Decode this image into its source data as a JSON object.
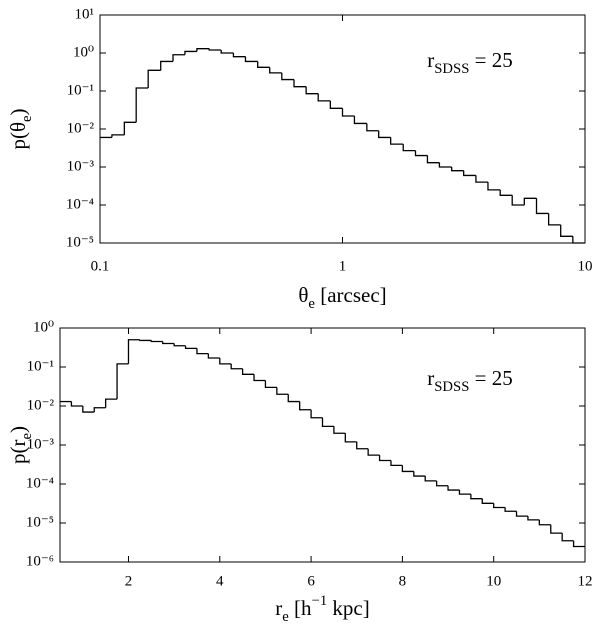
{
  "chart_data": [
    {
      "type": "histogram",
      "xlog": true,
      "ylog": true,
      "color": "#000000",
      "annotation": [
        {
          "text": "r"
        },
        {
          "text": "SDSS",
          "script": "sub"
        },
        {
          "text": " = 25"
        }
      ],
      "xlabel": [
        {
          "text": "θ"
        },
        {
          "text": "e",
          "script": "sub"
        },
        {
          "text": " [arcsec]"
        }
      ],
      "ylabel": [
        {
          "text": "p(θ"
        },
        {
          "text": "e",
          "script": "sub"
        },
        {
          "text": ")"
        }
      ],
      "bins": [
        0.1,
        0.112,
        0.126,
        0.141,
        0.158,
        0.178,
        0.2,
        0.224,
        0.251,
        0.282,
        0.316,
        0.355,
        0.398,
        0.447,
        0.501,
        0.562,
        0.631,
        0.708,
        0.794,
        0.891,
        1,
        1.12,
        1.26,
        1.41,
        1.58,
        1.78,
        2,
        2.24,
        2.51,
        2.82,
        3.16,
        3.55,
        3.98,
        4.47,
        5.01,
        5.62,
        6.31,
        7.08,
        7.94,
        8.91,
        10
      ],
      "values": [
        0.006,
        0.007,
        0.015,
        0.12,
        0.35,
        0.6,
        0.9,
        1.1,
        1.3,
        1.2,
        1.0,
        0.8,
        0.6,
        0.42,
        0.3,
        0.2,
        0.13,
        0.085,
        0.055,
        0.035,
        0.022,
        0.014,
        0.009,
        0.006,
        0.004,
        0.0027,
        0.002,
        0.0013,
        0.001,
        0.0008,
        0.0006,
        0.0004,
        0.00025,
        0.00018,
        0.0001,
        0.00015,
        6e-05,
        3e-05,
        1.5e-05,
        1e-05
      ],
      "xlim": [
        0.1,
        10
      ],
      "xticks": [
        0.1,
        1,
        10
      ],
      "ylim": [
        1e-05,
        10
      ],
      "yticks": [
        {
          "value": 1e-05,
          "label": "10⁻⁵"
        },
        {
          "value": 0.0001,
          "label": "10⁻⁴"
        },
        {
          "value": 0.001,
          "label": "10⁻³"
        },
        {
          "value": 0.01,
          "label": "10⁻²"
        },
        {
          "value": 0.1,
          "label": "10⁻¹"
        },
        {
          "value": 1,
          "label": "10⁰"
        },
        {
          "value": 10,
          "label": "10¹"
        }
      ]
    },
    {
      "type": "histogram",
      "xlog": false,
      "ylog": true,
      "color": "#000000",
      "annotation": [
        {
          "text": "r"
        },
        {
          "text": "SDSS",
          "script": "sub"
        },
        {
          "text": " = 25"
        }
      ],
      "xlabel": [
        {
          "text": "r"
        },
        {
          "text": "e",
          "script": "sub"
        },
        {
          "text": " [h"
        },
        {
          "text": "−1",
          "script": "sup"
        },
        {
          "text": " kpc]"
        }
      ],
      "ylabel": [
        {
          "text": "p(r"
        },
        {
          "text": "e",
          "script": "sub"
        },
        {
          "text": ")"
        }
      ],
      "bins": [
        0.5,
        0.75,
        1,
        1.25,
        1.5,
        1.75,
        2,
        2.25,
        2.5,
        2.75,
        3,
        3.25,
        3.5,
        3.75,
        4,
        4.25,
        4.5,
        4.75,
        5,
        5.25,
        5.5,
        5.75,
        6,
        6.25,
        6.5,
        6.75,
        7,
        7.25,
        7.5,
        7.75,
        8,
        8.25,
        8.5,
        8.75,
        9,
        9.25,
        9.5,
        9.75,
        10,
        10.25,
        10.5,
        10.75,
        11,
        11.25,
        11.5,
        11.75,
        12
      ],
      "values": [
        0.013,
        0.01,
        0.007,
        0.009,
        0.015,
        0.12,
        0.5,
        0.48,
        0.45,
        0.4,
        0.35,
        0.3,
        0.22,
        0.17,
        0.12,
        0.09,
        0.065,
        0.045,
        0.03,
        0.02,
        0.013,
        0.008,
        0.005,
        0.003,
        0.002,
        0.0012,
        0.0008,
        0.00055,
        0.0004,
        0.0003,
        0.00021,
        0.00016,
        0.00012,
        9e-05,
        7e-05,
        5.5e-05,
        4.2e-05,
        3.2e-05,
        2.5e-05,
        2e-05,
        1.5e-05,
        1.2e-05,
        9e-06,
        5.5e-06,
        3.5e-06,
        2.5e-06
      ],
      "xlim": [
        0.5,
        12
      ],
      "xticks": [
        2,
        4,
        6,
        8,
        10,
        12
      ],
      "ylim": [
        1e-06,
        1
      ],
      "yticks": [
        {
          "value": 1e-06,
          "label": "10⁻⁶"
        },
        {
          "value": 1e-05,
          "label": "10⁻⁵"
        },
        {
          "value": 0.0001,
          "label": "10⁻⁴"
        },
        {
          "value": 0.001,
          "label": "10⁻³"
        },
        {
          "value": 0.01,
          "label": "10⁻²"
        },
        {
          "value": 0.1,
          "label": "10⁻¹"
        },
        {
          "value": 1,
          "label": "10⁰"
        }
      ]
    }
  ]
}
